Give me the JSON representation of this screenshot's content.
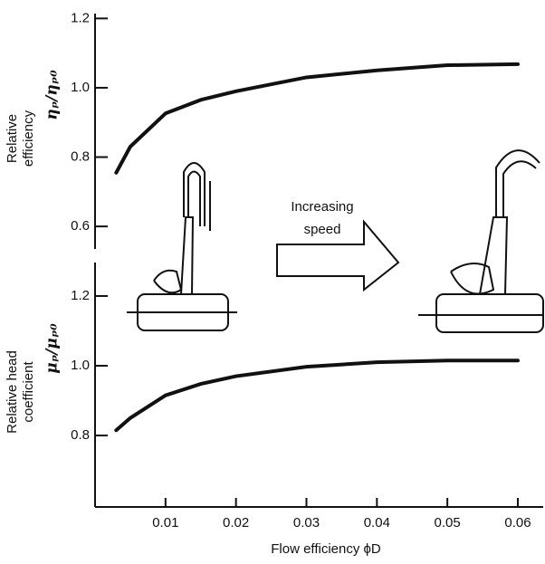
{
  "chart_data": [
    {
      "type": "line",
      "y_label": [
        "Relative",
        "efficiency"
      ],
      "y_symbol": "ηₚ/ηₚ₀",
      "annotation": [
        "Increasing",
        "speed"
      ],
      "x": [
        0.003,
        0.005,
        0.01,
        0.015,
        0.02,
        0.03,
        0.04,
        0.05,
        0.06
      ],
      "series": [
        {
          "color": "#111111",
          "values": [
            0.755,
            0.83,
            0.926,
            0.965,
            0.99,
            1.03,
            1.05,
            1.065,
            1.068
          ]
        }
      ],
      "xlim": [
        0,
        0.0636
      ],
      "ylim": [
        0.535,
        1.214
      ],
      "yticks": [
        {
          "value": 0.6,
          "label": "0.6"
        },
        {
          "value": 0.8,
          "label": "0.8"
        },
        {
          "value": 1.0,
          "label": "1.0"
        },
        {
          "value": 1.2,
          "label": "1.2"
        }
      ]
    },
    {
      "type": "line",
      "y_label": [
        "Relative head",
        "coefficient"
      ],
      "y_symbol": "μₚ/μₚ₀",
      "x_label": "Flow efficiency ϕD",
      "x": [
        0.003,
        0.005,
        0.01,
        0.015,
        0.02,
        0.03,
        0.04,
        0.05,
        0.06
      ],
      "series": [
        {
          "color": "#111111",
          "values": [
            0.815,
            0.85,
            0.915,
            0.948,
            0.97,
            0.997,
            1.01,
            1.015,
            1.015
          ]
        }
      ],
      "xlim": [
        0,
        0.0636
      ],
      "ylim": [
        0.595,
        1.296
      ],
      "xticks": [
        0.01,
        0.02,
        0.03,
        0.04,
        0.05,
        0.06
      ],
      "yticks": [
        {
          "value": 0.8,
          "label": "0.8"
        },
        {
          "value": 1.0,
          "label": "1.0"
        },
        {
          "value": 1.2,
          "label": "1.2"
        }
      ]
    }
  ]
}
